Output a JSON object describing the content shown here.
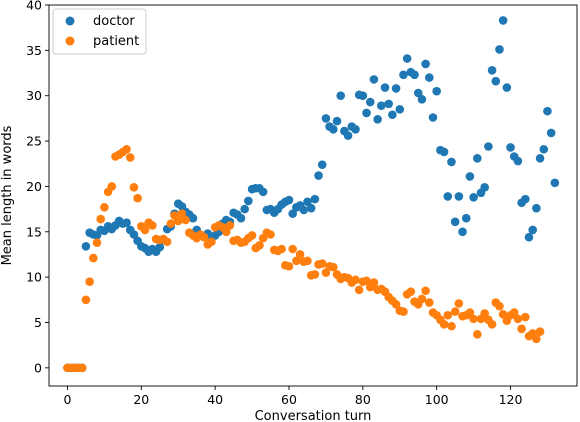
{
  "chart_data": {
    "type": "scatter",
    "title": "",
    "xlabel": "Conversation turn",
    "ylabel": "Mean length in words",
    "xlim": [
      -5,
      138
    ],
    "ylim": [
      -2,
      40
    ],
    "xticks": [
      0,
      20,
      40,
      60,
      80,
      100,
      120
    ],
    "yticks": [
      0,
      5,
      10,
      15,
      20,
      25,
      30,
      35,
      40
    ],
    "grid": false,
    "legend_position": "top-left",
    "series": [
      {
        "name": "doctor",
        "color": "#1f77b4",
        "x": [
          0,
          1,
          2,
          3,
          4,
          5,
          6,
          7,
          8,
          9,
          10,
          11,
          12,
          13,
          14,
          15,
          16,
          17,
          18,
          19,
          20,
          21,
          22,
          23,
          24,
          25,
          26,
          27,
          28,
          29,
          30,
          31,
          32,
          33,
          34,
          35,
          36,
          37,
          38,
          39,
          40,
          41,
          42,
          43,
          44,
          45,
          46,
          47,
          48,
          49,
          50,
          51,
          52,
          53,
          54,
          55,
          56,
          57,
          58,
          59,
          60,
          61,
          62,
          63,
          64,
          65,
          66,
          67,
          68,
          69,
          70,
          71,
          72,
          73,
          74,
          75,
          76,
          77,
          78,
          79,
          80,
          81,
          82,
          83,
          84,
          85,
          86,
          87,
          88,
          89,
          90,
          91,
          92,
          93,
          94,
          95,
          96,
          97,
          98,
          99,
          100,
          101,
          102,
          103,
          104,
          105,
          106,
          107,
          108,
          109,
          110,
          111,
          112,
          113,
          114,
          115,
          116,
          117,
          118,
          119,
          120,
          121,
          122,
          123,
          124,
          125,
          126,
          127,
          128,
          129,
          130,
          131,
          132
        ],
        "y": [
          0,
          0,
          0,
          0,
          0,
          13.4,
          14.9,
          14.7,
          14.6,
          15.2,
          15.1,
          15.6,
          15.3,
          15.7,
          16.2,
          15.9,
          16.0,
          15.2,
          14.7,
          14.0,
          13.4,
          13.2,
          12.8,
          13.1,
          12.8,
          13.3,
          14.1,
          15.3,
          15.6,
          17.0,
          18.1,
          17.8,
          17.2,
          16.9,
          16.5,
          15.2,
          14.7,
          14.5,
          14.8,
          14.3,
          14.6,
          15.0,
          15.9,
          16.3,
          16.1,
          17.1,
          16.9,
          16.5,
          17.5,
          18.4,
          19.7,
          19.8,
          19.8,
          19.4,
          17.4,
          17.5,
          17.1,
          17.5,
          18.0,
          18.3,
          18.5,
          17.0,
          17.7,
          17.9,
          17.4,
          18.3,
          17.6,
          18.6,
          21.2,
          22.4,
          27.5,
          26.6,
          26.3,
          27.2,
          30.0,
          26.1,
          25.6,
          26.6,
          26.3,
          30.1,
          30.0,
          28.1,
          29.3,
          31.8,
          27.4,
          28.9,
          30.9,
          29.1,
          27.9,
          30.8,
          28.5,
          32.3,
          34.1,
          32.6,
          32.3,
          30.3,
          29.6,
          33.5,
          32.0,
          27.6,
          30.5,
          24.0,
          23.8,
          18.9,
          22.7,
          16.1,
          18.9,
          15.0,
          16.5,
          21.1,
          18.8,
          23.1,
          19.3,
          19.9,
          24.4,
          32.8,
          31.6,
          35.1,
          38.3,
          30.9,
          24.3,
          23.3,
          22.8,
          18.2,
          18.6,
          14.4,
          15.2,
          17.6,
          23.1,
          24.1,
          28.3,
          25.9,
          20.4
        ]
      },
      {
        "name": "patient",
        "color": "#ff7f0e",
        "x": [
          0,
          1,
          2,
          3,
          4,
          5,
          6,
          7,
          8,
          9,
          10,
          11,
          12,
          13,
          14,
          15,
          16,
          17,
          18,
          19,
          20,
          21,
          22,
          23,
          24,
          25,
          26,
          27,
          28,
          29,
          30,
          31,
          32,
          33,
          34,
          35,
          36,
          37,
          38,
          39,
          40,
          41,
          42,
          43,
          44,
          45,
          46,
          47,
          48,
          49,
          50,
          51,
          52,
          53,
          54,
          55,
          56,
          57,
          58,
          59,
          60,
          61,
          62,
          63,
          64,
          65,
          66,
          67,
          68,
          69,
          70,
          71,
          72,
          73,
          74,
          75,
          76,
          77,
          78,
          79,
          80,
          81,
          82,
          83,
          84,
          85,
          86,
          87,
          88,
          89,
          90,
          91,
          92,
          93,
          94,
          95,
          96,
          97,
          98,
          99,
          100,
          101,
          102,
          103,
          104,
          105,
          106,
          107,
          108,
          109,
          110,
          111,
          112,
          113,
          114,
          115,
          116,
          117,
          118,
          119,
          120,
          121,
          122,
          123,
          124,
          125,
          126,
          127,
          128
        ],
        "y": [
          0,
          0,
          0,
          0,
          0,
          7.5,
          9.5,
          12.1,
          13.8,
          16.4,
          17.7,
          19.4,
          20.0,
          23.3,
          23.5,
          23.8,
          24.1,
          23.2,
          19.9,
          18.7,
          15.6,
          15.2,
          16.0,
          15.7,
          14.2,
          14.1,
          14.2,
          13.9,
          15.9,
          16.8,
          16.2,
          17.0,
          16.3,
          14.9,
          14.6,
          14.3,
          14.7,
          14.4,
          13.6,
          13.9,
          15.5,
          15.7,
          15.5,
          15.0,
          15.7,
          14.0,
          14.1,
          13.8,
          13.9,
          14.3,
          14.6,
          13.2,
          13.5,
          14.3,
          14.9,
          14.7,
          13.0,
          12.9,
          13.1,
          11.3,
          11.2,
          13.1,
          11.8,
          12.5,
          11.7,
          11.8,
          10.2,
          10.3,
          11.4,
          11.5,
          10.5,
          11.2,
          11.1,
          10.3,
          9.8,
          10.0,
          9.9,
          9.4,
          9.7,
          8.6,
          9.5,
          9.6,
          8.9,
          9.4,
          8.6,
          8.7,
          8.4,
          7.8,
          7.4,
          7.0,
          6.3,
          6.2,
          8.1,
          8.4,
          7.3,
          7.0,
          7.6,
          8.5,
          7.2,
          6.1,
          5.8,
          5.3,
          4.8,
          5.8,
          4.6,
          6.2,
          7.1,
          5.7,
          5.8,
          6.1,
          5.4,
          3.7,
          5.4,
          6.0,
          5.3,
          4.8,
          7.2,
          6.8,
          5.9,
          5.2,
          5.8,
          6.1,
          5.4,
          4.3,
          5.6,
          3.5,
          3.8,
          3.2,
          4.0
        ]
      }
    ]
  }
}
